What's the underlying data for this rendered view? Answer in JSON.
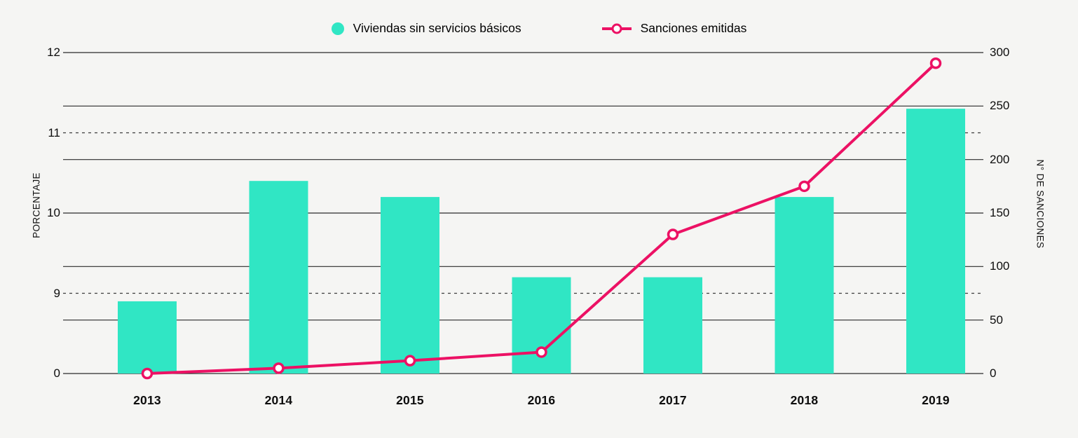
{
  "colors": {
    "background": "#f5f5f3",
    "bar": "#30e6c4",
    "line": "#ec1164",
    "grid_solid": "#2b2b2b",
    "grid_dashed": "#3c3c3c",
    "text": "#0d0d0d"
  },
  "legend": {
    "bars_label": "Viviendas sin servicios básicos",
    "line_label": "Sanciones emitidas"
  },
  "chart_data": {
    "type": "combo-bar-line-dual-axis",
    "categories": [
      "2013",
      "2014",
      "2015",
      "2016",
      "2017",
      "2018",
      "2019"
    ],
    "series": [
      {
        "name": "Viviendas sin servicios básicos",
        "type": "bar",
        "axis": "left",
        "values": [
          8.9,
          10.4,
          10.2,
          9.2,
          9.2,
          10.2,
          11.3
        ]
      },
      {
        "name": "Sanciones emitidas",
        "type": "line",
        "axis": "right",
        "values": [
          0,
          5,
          12,
          20,
          130,
          175,
          290
        ]
      }
    ],
    "left_axis": {
      "label": "PORCENTAJE",
      "ticks": [
        12,
        11,
        10,
        9,
        0
      ],
      "dashed_ticks": [
        11,
        9
      ],
      "broken_axis": true,
      "note": "0 tick sits one grid step below 9 (axis break); 12 aligns with 300, 10 with 150, 0 with 0 on the right axis"
    },
    "right_axis": {
      "label": "N° DE SANCIONES",
      "ticks": [
        300,
        250,
        200,
        150,
        100,
        50,
        0
      ],
      "min": 0,
      "max": 300
    },
    "grid": "horizontal solid lines at right-axis ticks; horizontal dashed lines at left ticks 9 and 11",
    "legend_position": "top-center",
    "title": ""
  }
}
